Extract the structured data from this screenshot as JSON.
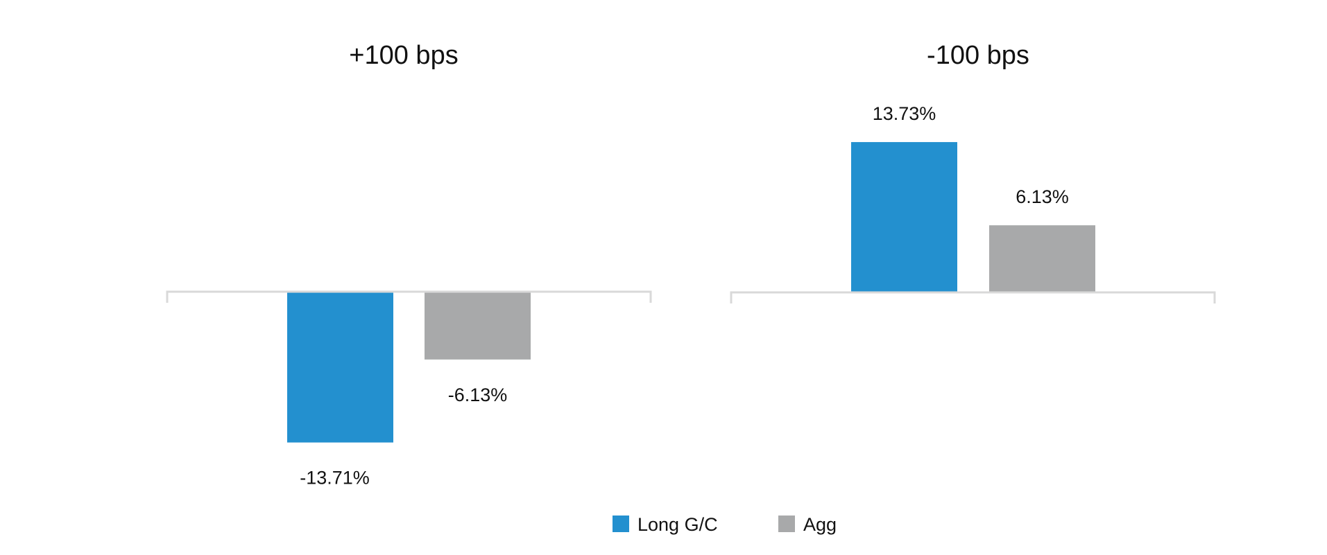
{
  "chart_data": [
    {
      "type": "bar",
      "title": "+100 bps",
      "categories": [
        ""
      ],
      "series": [
        {
          "name": "Long G/C",
          "values": [
            -13.71
          ],
          "labels": [
            "-13.71%"
          ],
          "color": "#2390CF"
        },
        {
          "name": "Agg",
          "values": [
            -6.13
          ],
          "labels": [
            "-6.13%"
          ],
          "color": "#A8A9AA"
        }
      ],
      "grid": false
    },
    {
      "type": "bar",
      "title": "-100 bps",
      "categories": [
        ""
      ],
      "series": [
        {
          "name": "Long G/C",
          "values": [
            13.73
          ],
          "labels": [
            "13.73%"
          ],
          "color": "#2390CF"
        },
        {
          "name": "Agg",
          "values": [
            6.13
          ],
          "labels": [
            "6.13%"
          ],
          "color": "#A8A9AA"
        }
      ],
      "grid": false
    }
  ],
  "legend": {
    "position": "bottom",
    "items": [
      {
        "label": "Long G/C",
        "color": "#2390CF"
      },
      {
        "label": "Agg",
        "color": "#A8A9AA"
      }
    ]
  },
  "axis_color": "#D9D9D9"
}
